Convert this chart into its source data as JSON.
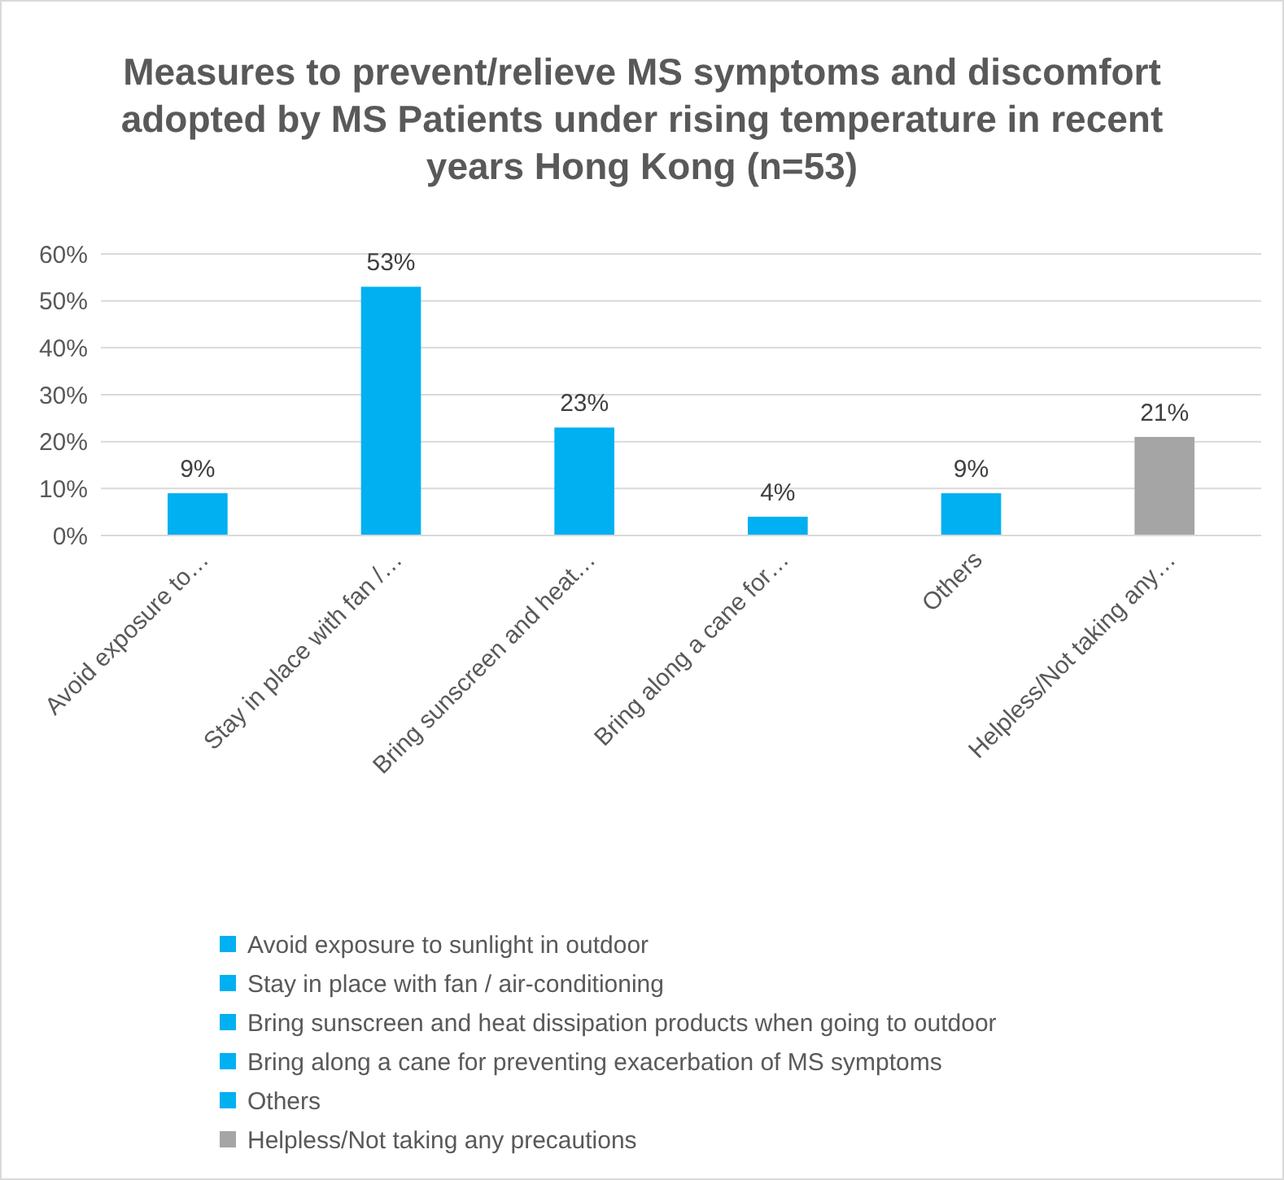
{
  "chart_data": {
    "type": "bar",
    "title": "Measures to prevent/relieve MS symptoms and discomfort adopted by MS Patients under rising temperature in recent years Hong Kong (n=53)",
    "categories": [
      "Avoid exposure to…",
      "Stay in place with fan /…",
      "Bring sunscreen and heat…",
      "Bring along a cane for…",
      "Others",
      "Helpless/Not taking any…"
    ],
    "stacked": true,
    "series": [
      {
        "name": "Avoid exposure to sunlight in outdoor",
        "color": "#00b0f0",
        "values": [
          9,
          null,
          null,
          null,
          null,
          null
        ],
        "value_labels": [
          "9%",
          null,
          null,
          null,
          null,
          null
        ]
      },
      {
        "name": "Stay in place with fan / air-conditioning",
        "color": "#00b0f0",
        "values": [
          null,
          53,
          null,
          null,
          null,
          null
        ],
        "value_labels": [
          null,
          "53%",
          null,
          null,
          null,
          null
        ]
      },
      {
        "name": "Bring sunscreen and heat dissipation products when going to outdoor",
        "color": "#00b0f0",
        "values": [
          null,
          null,
          23,
          null,
          null,
          null
        ],
        "value_labels": [
          null,
          null,
          "23%",
          null,
          null,
          null
        ]
      },
      {
        "name": "Bring along a cane for preventing exacerbation of MS symptoms",
        "color": "#00b0f0",
        "values": [
          null,
          null,
          null,
          4,
          null,
          null
        ],
        "value_labels": [
          null,
          null,
          null,
          "4%",
          null,
          null
        ]
      },
      {
        "name": "Others",
        "color": "#00b0f0",
        "values": [
          null,
          null,
          null,
          null,
          9,
          null
        ],
        "value_labels": [
          null,
          null,
          null,
          null,
          "9%",
          null
        ]
      },
      {
        "name": "Helpless/Not taking any precautions",
        "color": "#a5a5a5",
        "values": [
          null,
          null,
          null,
          null,
          null,
          21
        ],
        "value_labels": [
          null,
          null,
          null,
          null,
          null,
          "21%"
        ]
      }
    ],
    "ylim": [
      0,
      60
    ],
    "yticks": [
      {
        "value": 0,
        "label": "0%"
      },
      {
        "value": 10,
        "label": "10%"
      },
      {
        "value": 20,
        "label": "20%"
      },
      {
        "value": 30,
        "label": "30%"
      },
      {
        "value": 40,
        "label": "40%"
      },
      {
        "value": 50,
        "label": "50%"
      },
      {
        "value": 60,
        "label": "60%"
      }
    ],
    "grid": "y",
    "legend": "bottom"
  }
}
